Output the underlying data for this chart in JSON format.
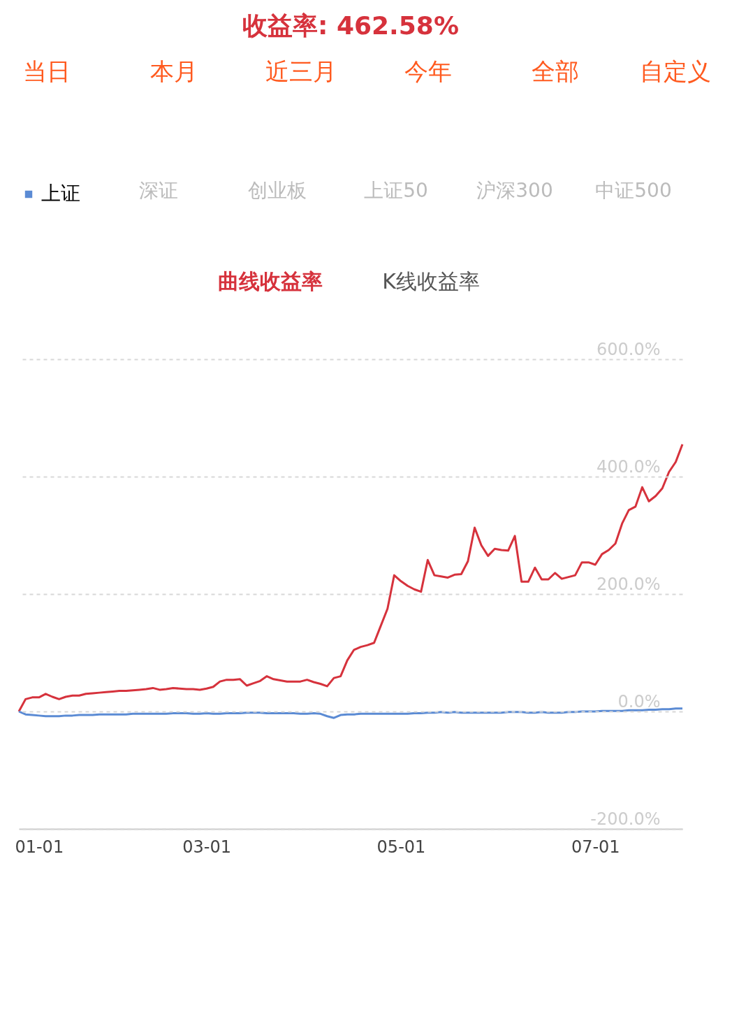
{
  "chart_data": {
    "type": "line",
    "title": "收益率: 462.58%",
    "annotations": [
      "当日",
      "本月",
      "近三月",
      "今年",
      "全部",
      "自定义",
      "深证",
      "创业板",
      "上证50",
      "沪深300",
      "中证500",
      "曲线收益率",
      "K线收益率"
    ],
    "categories": [
      null,
      null,
      null,
      "01-01",
      null,
      null,
      null,
      null,
      null,
      null,
      null,
      null,
      null,
      null,
      null,
      null,
      null,
      null,
      null,
      null,
      null,
      null,
      null,
      null,
      null,
      null,
      null,
      null,
      "03-01",
      null,
      null,
      null,
      null,
      null,
      null,
      null,
      null,
      null,
      null,
      null,
      null,
      null,
      null,
      null,
      null,
      null,
      null,
      null,
      null,
      null,
      null,
      null,
      null,
      null,
      null,
      null,
      null,
      "05-01",
      null,
      null,
      null,
      null,
      null,
      null,
      null,
      null,
      null,
      null,
      null,
      null,
      null,
      null,
      null,
      null,
      null,
      null,
      null,
      null,
      null,
      null,
      null,
      null,
      null,
      null,
      null,
      null,
      "07-01",
      null,
      null,
      null,
      null,
      null,
      null,
      null,
      null,
      null,
      null,
      null,
      null,
      null
    ],
    "series": [
      {
        "color": "#d6323c",
        "values": [
          0,
          21,
          24,
          24,
          30,
          25,
          21,
          25,
          27,
          27,
          30,
          31,
          32,
          33,
          34,
          35,
          35,
          36,
          37,
          38,
          40,
          37,
          38,
          40,
          39,
          38,
          38,
          37,
          39,
          42,
          51,
          54,
          54,
          55,
          44,
          48,
          52,
          60,
          55,
          53,
          51,
          51,
          51,
          54,
          50,
          47,
          43,
          57,
          60,
          87,
          105,
          110,
          113,
          117,
          146,
          175,
          232,
          222,
          214,
          208,
          204,
          258,
          232,
          230,
          228,
          233,
          234,
          256,
          313,
          283,
          265,
          277,
          275,
          274,
          299,
          221,
          221,
          245,
          225,
          225,
          236,
          226,
          229,
          232,
          254,
          254,
          250,
          268,
          275,
          286,
          320,
          343,
          349,
          382,
          358,
          367,
          380,
          408,
          425,
          455
        ]
      },
      {
        "name": "上证",
        "color": "#5b8bd4",
        "values": [
          0,
          -5,
          -6,
          -7,
          -8,
          -8,
          -8,
          -7,
          -7,
          -6,
          -6,
          -6,
          -5,
          -5,
          -5,
          -5,
          -5,
          -4,
          -4,
          -4,
          -4,
          -4,
          -4,
          -3,
          -3,
          -3,
          -4,
          -4,
          -3,
          -4,
          -4,
          -3,
          -3,
          -3,
          -2,
          -2,
          -2,
          -3,
          -3,
          -3,
          -3,
          -3,
          -4,
          -4,
          -3,
          -4,
          -8,
          -11,
          -6,
          -5,
          -5,
          -4,
          -4,
          -4,
          -4,
          -4,
          -4,
          -4,
          -4,
          -3,
          -3,
          -2,
          -2,
          -1,
          -2,
          -1,
          -2,
          -2,
          -2,
          -2,
          -2,
          -2,
          -2,
          -1,
          -1,
          -1,
          -2,
          -2,
          -1,
          -2,
          -2,
          -2,
          -1,
          -1,
          0,
          0,
          0,
          1,
          1,
          1,
          1,
          2,
          2,
          2,
          3,
          3,
          4,
          4,
          5,
          5
        ]
      }
    ],
    "ylim": [
      -200,
      600
    ],
    "yticks": [
      {
        "value": -200,
        "label": "-200.0%"
      },
      {
        "value": 0,
        "label": "0.0%"
      },
      {
        "value": 200,
        "label": "200.0%"
      },
      {
        "value": 400,
        "label": "400.0%"
      },
      {
        "value": 600,
        "label": "600.0%"
      }
    ],
    "grid": "y",
    "legend": "top left",
    "line_style": "solid",
    "marker": "none"
  }
}
